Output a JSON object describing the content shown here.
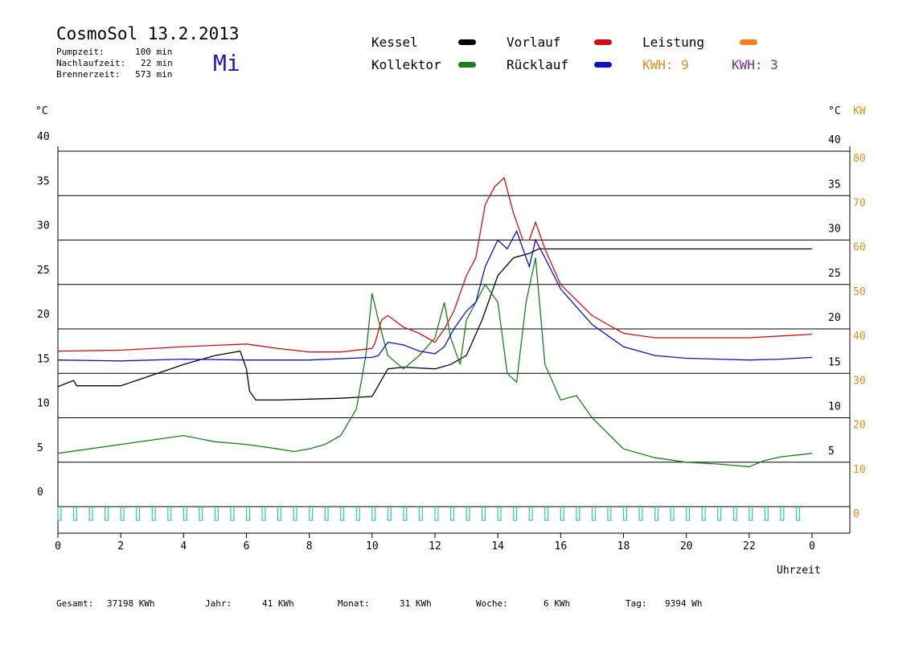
{
  "header": {
    "title": "CosmoSol 13.2.2013",
    "day": "Mi",
    "pumpzeit_label": "Pumpzeit:",
    "pumpzeit_value": "100 min",
    "nachlauf_label": "Nachlaufzeit:",
    "nachlauf_value": "22 min",
    "brenner_label": "Brennerzeit:",
    "brenner_value": "573 min"
  },
  "legend": {
    "kessel": "Kessel",
    "kollektor": "Kollektor",
    "vorlauf": "Vorlauf",
    "ruecklauf": "Rücklauf",
    "leistung": "Leistung",
    "kwh_a": "KWH: 9",
    "kwh_b": "KWH: 3"
  },
  "axes": {
    "left_unit": "°C",
    "right_unit_c": "°C",
    "right_unit_kw": "KW",
    "xlabel": "Uhrzeit"
  },
  "footer": {
    "gesamt_label": "Gesamt:",
    "gesamt_value": "37198 KWh",
    "jahr_label": "Jahr:",
    "jahr_value": "41 KWh",
    "monat_label": "Monat:",
    "monat_value": "31 KWh",
    "woche_label": "Woche:",
    "woche_value": "6 KWh",
    "tag_label": "Tag:",
    "tag_value": "9394 Wh"
  },
  "colors": {
    "kessel": "#000000",
    "kollektor": "#1a7f1a",
    "vorlauf": "#d01010",
    "ruecklauf": "#1010c8",
    "leistung": "#f08020",
    "kwh_b": "#7a2a9a",
    "pump": "#28c8c8",
    "right_axis": "#e0901a"
  },
  "chart_data": {
    "type": "line",
    "title": "CosmoSol 13.2.2013",
    "xlabel": "Uhrzeit",
    "ylabel": "°C",
    "xlim": [
      0,
      24
    ],
    "ylim": [
      0,
      40
    ],
    "y2lim": [
      0,
      80
    ],
    "x_ticks": [
      "0",
      "2",
      "4",
      "6",
      "8",
      "10",
      "12",
      "14",
      "16",
      "18",
      "20",
      "22",
      "0"
    ],
    "y_ticks_left": [
      "0",
      "5",
      "10",
      "15",
      "20",
      "25",
      "30",
      "35",
      "40"
    ],
    "y_ticks_right_c": [
      "5",
      "10",
      "15",
      "20",
      "25",
      "30",
      "35",
      "40"
    ],
    "y_ticks_right_kw": [
      "0",
      "10",
      "20",
      "30",
      "40",
      "50",
      "60",
      "70",
      "80"
    ],
    "grid": true,
    "legend_position": "top",
    "series": [
      {
        "name": "Kessel",
        "x": [
          0,
          0.5,
          0.6,
          2,
          3,
          4,
          5,
          5.8,
          6,
          6.1,
          6.3,
          7,
          8,
          9,
          9.5,
          10,
          10.5,
          11,
          11.5,
          12,
          12.5,
          13,
          13.5,
          14,
          14.5,
          15,
          15.3,
          16,
          18,
          20,
          22,
          24
        ],
        "y": [
          13.5,
          14.2,
          13.6,
          13.6,
          14.8,
          16,
          17,
          17.5,
          15.5,
          13,
          12,
          12,
          12.1,
          12.2,
          12.3,
          12.4,
          15.5,
          15.7,
          15.6,
          15.5,
          16,
          17,
          21,
          26,
          28,
          28.5,
          29,
          29,
          29,
          29,
          29,
          29
        ]
      },
      {
        "name": "Kollektor",
        "x": [
          0,
          1,
          2,
          3,
          4,
          5,
          6,
          7,
          7.5,
          8,
          8.5,
          9,
          9.5,
          9.8,
          10,
          10.2,
          10.5,
          11,
          11.5,
          12,
          12.3,
          12.5,
          12.8,
          13,
          13.3,
          13.6,
          14,
          14.3,
          14.6,
          14.9,
          15.2,
          15.5,
          16,
          16.5,
          17,
          18,
          19,
          20,
          21,
          22,
          22.5,
          23,
          24
        ],
        "y": [
          6,
          6.5,
          7,
          7.5,
          8,
          7.3,
          7,
          6.5,
          6.2,
          6.5,
          7,
          8,
          11,
          17,
          24,
          21,
          17,
          15.5,
          17,
          19,
          23,
          19,
          16,
          21,
          23,
          25,
          23,
          15,
          14,
          23,
          28,
          16,
          12,
          12.5,
          10,
          6.5,
          5.5,
          5,
          4.8,
          4.5,
          5.2,
          5.6,
          6
        ]
      },
      {
        "name": "Vorlauf",
        "x": [
          0,
          2,
          4,
          6,
          7,
          8,
          9,
          10,
          10.1,
          10.3,
          10.5,
          11,
          11.5,
          12,
          12.3,
          12.6,
          13,
          13.3,
          13.6,
          13.9,
          14.2,
          14.5,
          14.8,
          15,
          15.2,
          15.5,
          16,
          17,
          18,
          19,
          20,
          21,
          22,
          23,
          24
        ],
        "y": [
          17.5,
          17.6,
          18,
          18.3,
          17.8,
          17.4,
          17.4,
          17.8,
          18.5,
          21,
          21.5,
          20.2,
          19.5,
          18.5,
          20,
          22,
          26,
          28,
          34,
          36,
          37,
          33,
          30,
          30,
          32,
          29,
          25,
          21.5,
          19.5,
          19,
          19,
          19,
          19,
          19.2,
          19.4
        ]
      },
      {
        "name": "Rücklauf",
        "x": [
          0,
          2,
          4,
          6,
          8,
          10,
          10.2,
          10.5,
          11,
          11.5,
          12,
          12.3,
          12.6,
          13,
          13.3,
          13.6,
          14,
          14.3,
          14.6,
          15,
          15.2,
          15.5,
          16,
          17,
          18,
          19,
          20,
          21,
          22,
          23,
          24
        ],
        "y": [
          16.5,
          16.4,
          16.6,
          16.5,
          16.5,
          16.8,
          17,
          18.5,
          18.2,
          17.5,
          17.2,
          18,
          20,
          22,
          23,
          27,
          30,
          29,
          31,
          27,
          30,
          28,
          24.5,
          20.5,
          18,
          17,
          16.7,
          16.6,
          16.5,
          16.6,
          16.8
        ]
      }
    ]
  }
}
